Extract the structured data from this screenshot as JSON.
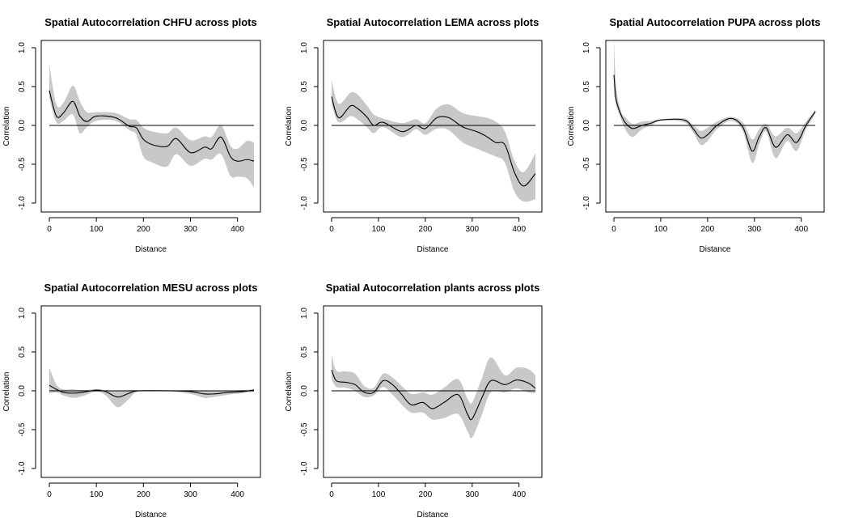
{
  "chart_data": [
    {
      "type": "line",
      "title": "Spatial Autocorrelation CHFU across plots",
      "xlabel": "Distance",
      "ylabel": "Correlation",
      "xlim": [
        0,
        435
      ],
      "ylim": [
        -1.0,
        1.0
      ],
      "xticks": [
        0,
        100,
        200,
        300,
        400
      ],
      "yticks": [
        -1.0,
        -0.5,
        0.0,
        0.5,
        1.0
      ],
      "ytick_labels": [
        "-1.0",
        "-0.5",
        "0.0",
        "0.5",
        "1.0"
      ],
      "reference_line": 0,
      "x": [
        0,
        15,
        30,
        50,
        65,
        80,
        100,
        140,
        170,
        185,
        200,
        220,
        250,
        270,
        300,
        330,
        345,
        365,
        385,
        400,
        420,
        435
      ],
      "y": [
        0.45,
        0.12,
        0.16,
        0.31,
        0.12,
        0.05,
        0.12,
        0.1,
        -0.01,
        -0.03,
        -0.18,
        -0.25,
        -0.27,
        -0.17,
        -0.35,
        -0.28,
        -0.3,
        -0.15,
        -0.4,
        -0.46,
        -0.44,
        -0.46
      ],
      "lower": [
        0.35,
        0.04,
        0.06,
        0.14,
        -0.1,
        -0.02,
        0.06,
        0.06,
        -0.06,
        -0.12,
        -0.4,
        -0.48,
        -0.53,
        -0.37,
        -0.52,
        -0.43,
        -0.44,
        -0.37,
        -0.65,
        -0.66,
        -0.68,
        -0.8
      ],
      "upper": [
        0.78,
        0.27,
        0.29,
        0.51,
        0.31,
        0.17,
        0.17,
        0.16,
        0.08,
        0.07,
        -0.03,
        -0.08,
        -0.1,
        -0.03,
        -0.19,
        -0.14,
        -0.15,
        0.0,
        -0.26,
        -0.3,
        -0.2,
        -0.22
      ]
    },
    {
      "type": "line",
      "title": "Spatial Autocorrelation LEMA across plots",
      "xlabel": "Distance",
      "ylabel": "Correlation",
      "xlim": [
        0,
        435
      ],
      "ylim": [
        -1.0,
        1.0
      ],
      "xticks": [
        0,
        100,
        200,
        300,
        400
      ],
      "yticks": [
        -1.0,
        -0.5,
        0.0,
        0.5,
        1.0
      ],
      "ytick_labels": [
        "-1.0",
        "-0.5",
        "0.0",
        "0.5",
        "1.0"
      ],
      "reference_line": 0,
      "x": [
        0,
        15,
        40,
        55,
        75,
        90,
        110,
        150,
        180,
        200,
        225,
        250,
        280,
        310,
        330,
        350,
        370,
        390,
        410,
        435
      ],
      "y": [
        0.37,
        0.1,
        0.25,
        0.22,
        0.11,
        0.0,
        0.04,
        -0.08,
        0.0,
        -0.04,
        0.1,
        0.1,
        -0.02,
        -0.08,
        -0.14,
        -0.22,
        -0.25,
        -0.6,
        -0.78,
        -0.62
      ],
      "lower": [
        0.27,
        0.04,
        0.12,
        0.08,
        -0.02,
        -0.1,
        -0.02,
        -0.15,
        -0.05,
        -0.12,
        -0.04,
        -0.06,
        -0.22,
        -0.3,
        -0.35,
        -0.4,
        -0.48,
        -0.85,
        -0.98,
        -0.95
      ],
      "upper": [
        0.58,
        0.28,
        0.42,
        0.4,
        0.26,
        0.14,
        0.09,
        0.03,
        0.08,
        0.03,
        0.22,
        0.27,
        0.16,
        0.12,
        0.1,
        0.05,
        -0.08,
        -0.45,
        -0.6,
        -0.36
      ]
    },
    {
      "type": "line",
      "title": "Spatial Autocorrelation PUPA across plots",
      "xlabel": "Distance",
      "ylabel": "Correlation",
      "xlim": [
        0,
        435
      ],
      "ylim": [
        -1.0,
        1.0
      ],
      "xticks": [
        0,
        100,
        200,
        300,
        400
      ],
      "yticks": [
        -1.0,
        -0.5,
        0.0,
        0.5,
        1.0
      ],
      "ytick_labels": [
        "-1.0",
        "-0.5",
        "0.0",
        "0.5",
        "1.0"
      ],
      "reference_line": 0,
      "x": [
        0,
        5,
        15,
        25,
        40,
        60,
        80,
        100,
        150,
        170,
        185,
        200,
        220,
        250,
        275,
        295,
        310,
        325,
        345,
        370,
        390,
        410,
        430
      ],
      "y": [
        0.65,
        0.33,
        0.14,
        0.03,
        -0.04,
        0.0,
        0.03,
        0.07,
        0.07,
        -0.05,
        -0.16,
        -0.12,
        0.0,
        0.09,
        -0.02,
        -0.33,
        -0.15,
        -0.03,
        -0.28,
        -0.12,
        -0.22,
        0.0,
        0.18
      ],
      "lower": [
        0.4,
        0.25,
        0.09,
        -0.06,
        -0.15,
        -0.05,
        0.0,
        0.06,
        0.04,
        -0.1,
        -0.25,
        -0.2,
        -0.05,
        0.06,
        -0.07,
        -0.48,
        -0.25,
        -0.08,
        -0.42,
        -0.2,
        -0.33,
        -0.05,
        0.15
      ],
      "upper": [
        1.1,
        0.5,
        0.19,
        0.1,
        0.02,
        0.05,
        0.06,
        0.08,
        0.09,
        0.0,
        -0.07,
        -0.03,
        0.05,
        0.11,
        0.04,
        -0.18,
        -0.05,
        0.02,
        -0.14,
        -0.03,
        -0.1,
        0.05,
        0.2
      ]
    },
    {
      "type": "line",
      "title": "Spatial Autocorrelation MESU across plots",
      "xlabel": "Distance",
      "ylabel": "Correlation",
      "xlim": [
        0,
        435
      ],
      "ylim": [
        -1.0,
        1.0
      ],
      "xticks": [
        0,
        100,
        200,
        300,
        400
      ],
      "yticks": [
        -1.0,
        -0.5,
        0.0,
        0.5,
        1.0
      ],
      "ytick_labels": [
        "-1.0",
        "-0.5",
        "0.0",
        "0.5",
        "1.0"
      ],
      "reference_line": 0,
      "x": [
        0,
        15,
        30,
        50,
        70,
        100,
        120,
        145,
        170,
        190,
        260,
        300,
        330,
        350,
        380,
        410,
        435
      ],
      "y": [
        0.07,
        0.02,
        -0.02,
        -0.03,
        -0.02,
        0.01,
        -0.01,
        -0.08,
        -0.03,
        0.0,
        0.0,
        -0.01,
        -0.04,
        -0.04,
        -0.02,
        -0.01,
        0.01
      ],
      "lower": [
        -0.03,
        -0.02,
        -0.06,
        -0.09,
        -0.07,
        -0.01,
        -0.06,
        -0.21,
        -0.1,
        -0.01,
        -0.01,
        -0.04,
        -0.09,
        -0.08,
        -0.05,
        -0.03,
        -0.01
      ],
      "upper": [
        0.3,
        0.08,
        0.02,
        0.02,
        0.01,
        0.02,
        0.01,
        0.0,
        0.01,
        0.01,
        0.01,
        0.01,
        0.0,
        0.0,
        0.0,
        0.01,
        0.02
      ]
    },
    {
      "type": "line",
      "title": "Spatial Autocorrelation plants across plots",
      "xlabel": "Distance",
      "ylabel": "Correlation",
      "xlim": [
        0,
        435
      ],
      "ylim": [
        -1.0,
        1.0
      ],
      "xticks": [
        0,
        100,
        200,
        300,
        400
      ],
      "yticks": [
        -1.0,
        -0.5,
        0.0,
        0.5,
        1.0
      ],
      "ytick_labels": [
        "-1.0",
        "-0.5",
        "0.0",
        "0.5",
        "1.0"
      ],
      "reference_line": 0,
      "x": [
        0,
        10,
        30,
        50,
        70,
        90,
        110,
        130,
        150,
        170,
        195,
        215,
        240,
        270,
        290,
        300,
        320,
        340,
        370,
        395,
        420,
        435
      ],
      "y": [
        0.27,
        0.13,
        0.11,
        0.08,
        -0.02,
        -0.02,
        0.13,
        0.08,
        -0.05,
        -0.18,
        -0.15,
        -0.23,
        -0.15,
        -0.05,
        -0.3,
        -0.36,
        -0.1,
        0.13,
        0.08,
        0.14,
        0.1,
        0.03
      ],
      "lower": [
        0.15,
        0.05,
        0.04,
        0.0,
        -0.08,
        -0.06,
        0.05,
        -0.05,
        -0.18,
        -0.28,
        -0.28,
        -0.37,
        -0.35,
        -0.3,
        -0.52,
        -0.6,
        -0.32,
        -0.02,
        -0.02,
        0.03,
        -0.02,
        -0.03
      ],
      "upper": [
        0.47,
        0.26,
        0.25,
        0.22,
        0.06,
        0.04,
        0.22,
        0.17,
        0.06,
        -0.04,
        -0.02,
        -0.05,
        0.04,
        0.15,
        -0.1,
        -0.15,
        0.15,
        0.43,
        0.2,
        0.3,
        0.28,
        0.2
      ]
    }
  ]
}
